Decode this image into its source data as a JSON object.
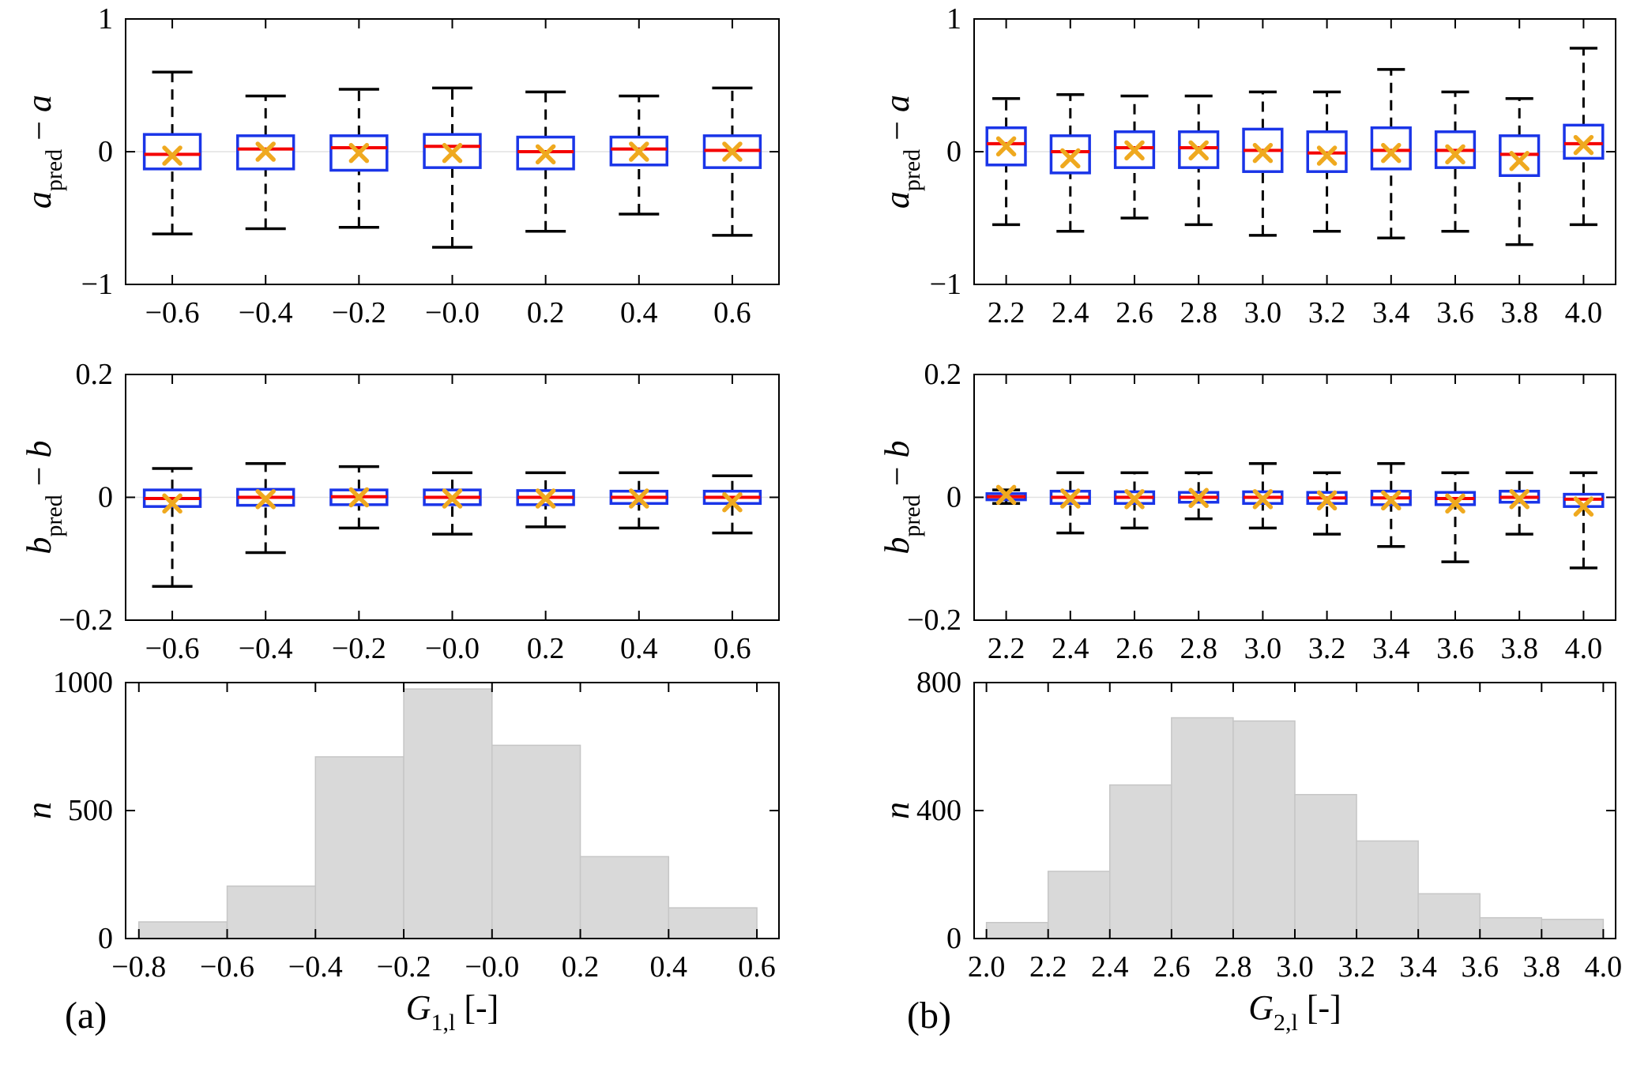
{
  "figure": {
    "panel_a_label": "(a)",
    "panel_b_label": "(b)",
    "colors": {
      "box": "#1a35e8",
      "median": "#f40000",
      "mean": "#efa91f",
      "whisker": "#000000",
      "cap": "#000000",
      "hist_fill": "#d9d9d9",
      "hist_edge": "#c6c6c6",
      "zero_grid": "#e2e2e2",
      "axis": "#000000",
      "text": "#000000"
    }
  },
  "chart_data": [
    {
      "id": "a_top",
      "type": "boxplot",
      "panel": {
        "col": 0,
        "row": 0
      },
      "ylabel": [
        {
          "t": "a",
          "i": 1
        },
        {
          "t": "pred",
          "s": 1
        },
        {
          "t": " − ",
          "i": 0
        },
        {
          "t": "a",
          "i": 1
        }
      ],
      "ylim": [
        -1,
        1
      ],
      "yticks": [
        {
          "v": -1,
          "label": "−1"
        },
        {
          "v": 0,
          "label": "0"
        },
        {
          "v": 1,
          "label": "1"
        }
      ],
      "zero_line": true,
      "categories": [
        "−0.6",
        "−0.4",
        "−0.2",
        "−0.0",
        "0.2",
        "0.4",
        "0.6"
      ],
      "boxes": [
        {
          "whislo": -0.62,
          "q1": -0.13,
          "med": -0.02,
          "q3": 0.13,
          "whishi": 0.6,
          "mean": -0.03
        },
        {
          "whislo": -0.58,
          "q1": -0.13,
          "med": 0.02,
          "q3": 0.12,
          "whishi": 0.42,
          "mean": 0.0
        },
        {
          "whislo": -0.57,
          "q1": -0.14,
          "med": 0.03,
          "q3": 0.12,
          "whishi": 0.47,
          "mean": -0.01
        },
        {
          "whislo": -0.72,
          "q1": -0.12,
          "med": 0.04,
          "q3": 0.13,
          "whishi": 0.48,
          "mean": -0.01
        },
        {
          "whislo": -0.6,
          "q1": -0.13,
          "med": 0.0,
          "q3": 0.11,
          "whishi": 0.45,
          "mean": -0.02
        },
        {
          "whislo": -0.47,
          "q1": -0.1,
          "med": 0.02,
          "q3": 0.11,
          "whishi": 0.42,
          "mean": 0.0
        },
        {
          "whislo": -0.63,
          "q1": -0.12,
          "med": 0.01,
          "q3": 0.12,
          "whishi": 0.48,
          "mean": 0.0
        }
      ]
    },
    {
      "id": "b_top",
      "type": "boxplot",
      "panel": {
        "col": 1,
        "row": 0
      },
      "ylabel": [
        {
          "t": "a",
          "i": 1
        },
        {
          "t": "pred",
          "s": 1
        },
        {
          "t": " − ",
          "i": 0
        },
        {
          "t": "a",
          "i": 1
        }
      ],
      "ylim": [
        -1,
        1
      ],
      "yticks": [
        {
          "v": -1,
          "label": "−1"
        },
        {
          "v": 0,
          "label": "0"
        },
        {
          "v": 1,
          "label": "1"
        }
      ],
      "zero_line": true,
      "categories": [
        "2.2",
        "2.4",
        "2.6",
        "2.8",
        "3.0",
        "3.2",
        "3.4",
        "3.6",
        "3.8",
        "4.0"
      ],
      "boxes": [
        {
          "whislo": -0.55,
          "q1": -0.1,
          "med": 0.06,
          "q3": 0.18,
          "whishi": 0.4,
          "mean": 0.04
        },
        {
          "whislo": -0.6,
          "q1": -0.16,
          "med": 0.0,
          "q3": 0.12,
          "whishi": 0.43,
          "mean": -0.05
        },
        {
          "whislo": -0.5,
          "q1": -0.12,
          "med": 0.03,
          "q3": 0.15,
          "whishi": 0.42,
          "mean": 0.01
        },
        {
          "whislo": -0.55,
          "q1": -0.12,
          "med": 0.03,
          "q3": 0.15,
          "whishi": 0.42,
          "mean": 0.01
        },
        {
          "whislo": -0.63,
          "q1": -0.15,
          "med": 0.01,
          "q3": 0.17,
          "whishi": 0.45,
          "mean": -0.01
        },
        {
          "whislo": -0.6,
          "q1": -0.15,
          "med": -0.01,
          "q3": 0.15,
          "whishi": 0.45,
          "mean": -0.03
        },
        {
          "whislo": -0.65,
          "q1": -0.13,
          "med": 0.01,
          "q3": 0.18,
          "whishi": 0.62,
          "mean": -0.01
        },
        {
          "whislo": -0.6,
          "q1": -0.12,
          "med": 0.01,
          "q3": 0.15,
          "whishi": 0.45,
          "mean": -0.02
        },
        {
          "whislo": -0.7,
          "q1": -0.18,
          "med": -0.02,
          "q3": 0.12,
          "whishi": 0.4,
          "mean": -0.07
        },
        {
          "whislo": -0.55,
          "q1": -0.05,
          "med": 0.06,
          "q3": 0.2,
          "whishi": 0.78,
          "mean": 0.05
        }
      ]
    },
    {
      "id": "a_mid",
      "type": "boxplot",
      "panel": {
        "col": 0,
        "row": 1
      },
      "ylabel": [
        {
          "t": "b",
          "i": 1
        },
        {
          "t": "pred",
          "s": 1
        },
        {
          "t": " − ",
          "i": 0
        },
        {
          "t": "b",
          "i": 1
        }
      ],
      "ylim": [
        -0.2,
        0.2
      ],
      "yticks": [
        {
          "v": -0.2,
          "label": "−0.2"
        },
        {
          "v": 0,
          "label": "0"
        },
        {
          "v": 0.2,
          "label": "0.2"
        }
      ],
      "zero_line": true,
      "categories": [
        "−0.6",
        "−0.4",
        "−0.2",
        "−0.0",
        "0.2",
        "0.4",
        "0.6"
      ],
      "boxes": [
        {
          "whislo": -0.145,
          "q1": -0.015,
          "med": -0.002,
          "q3": 0.012,
          "whishi": 0.047,
          "mean": -0.01
        },
        {
          "whislo": -0.09,
          "q1": -0.013,
          "med": 0.0,
          "q3": 0.013,
          "whishi": 0.055,
          "mean": -0.003
        },
        {
          "whislo": -0.05,
          "q1": -0.012,
          "med": 0.001,
          "q3": 0.012,
          "whishi": 0.05,
          "mean": 0.0
        },
        {
          "whislo": -0.06,
          "q1": -0.012,
          "med": 0.0,
          "q3": 0.012,
          "whishi": 0.04,
          "mean": -0.002
        },
        {
          "whislo": -0.048,
          "q1": -0.012,
          "med": 0.0,
          "q3": 0.011,
          "whishi": 0.04,
          "mean": -0.002
        },
        {
          "whislo": -0.05,
          "q1": -0.01,
          "med": 0.0,
          "q3": 0.01,
          "whishi": 0.04,
          "mean": -0.002
        },
        {
          "whislo": -0.058,
          "q1": -0.01,
          "med": 0.0,
          "q3": 0.01,
          "whishi": 0.035,
          "mean": -0.008
        }
      ]
    },
    {
      "id": "b_mid",
      "type": "boxplot",
      "panel": {
        "col": 1,
        "row": 1
      },
      "ylabel": [
        {
          "t": "b",
          "i": 1
        },
        {
          "t": "pred",
          "s": 1
        },
        {
          "t": " − ",
          "i": 0
        },
        {
          "t": "b",
          "i": 1
        }
      ],
      "ylim": [
        -0.2,
        0.2
      ],
      "yticks": [
        {
          "v": -0.2,
          "label": "−0.2"
        },
        {
          "v": 0,
          "label": "0"
        },
        {
          "v": 0.2,
          "label": "0.2"
        }
      ],
      "zero_line": true,
      "categories": [
        "2.2",
        "2.4",
        "2.6",
        "2.8",
        "3.0",
        "3.2",
        "3.4",
        "3.6",
        "3.8",
        "4.0"
      ],
      "boxes": [
        {
          "whislo": -0.01,
          "q1": -0.004,
          "med": 0.001,
          "q3": 0.006,
          "whishi": 0.012,
          "mean": 0.004
        },
        {
          "whislo": -0.058,
          "q1": -0.01,
          "med": 0.0,
          "q3": 0.01,
          "whishi": 0.04,
          "mean": -0.002
        },
        {
          "whislo": -0.05,
          "q1": -0.01,
          "med": 0.0,
          "q3": 0.009,
          "whishi": 0.04,
          "mean": -0.003
        },
        {
          "whislo": -0.035,
          "q1": -0.008,
          "med": 0.0,
          "q3": 0.008,
          "whishi": 0.04,
          "mean": -0.001
        },
        {
          "whislo": -0.05,
          "q1": -0.01,
          "med": 0.0,
          "q3": 0.009,
          "whishi": 0.055,
          "mean": -0.003
        },
        {
          "whislo": -0.06,
          "q1": -0.01,
          "med": -0.001,
          "q3": 0.008,
          "whishi": 0.04,
          "mean": -0.005
        },
        {
          "whislo": -0.08,
          "q1": -0.012,
          "med": -0.001,
          "q3": 0.01,
          "whishi": 0.055,
          "mean": -0.005
        },
        {
          "whislo": -0.105,
          "q1": -0.012,
          "med": -0.002,
          "q3": 0.008,
          "whishi": 0.04,
          "mean": -0.01
        },
        {
          "whislo": -0.06,
          "q1": -0.008,
          "med": 0.0,
          "q3": 0.01,
          "whishi": 0.04,
          "mean": -0.003
        },
        {
          "whislo": -0.115,
          "q1": -0.015,
          "med": -0.003,
          "q3": 0.005,
          "whishi": 0.04,
          "mean": -0.015
        }
      ]
    },
    {
      "id": "a_hist",
      "type": "hist",
      "panel": {
        "col": 0,
        "row": 2
      },
      "ylabel": [
        {
          "t": "n",
          "i": 1
        }
      ],
      "xlabel": [
        {
          "t": "G",
          "i": 1
        },
        {
          "t": "1,l",
          "s": 1
        },
        {
          "t": " [-]",
          "i": 0
        }
      ],
      "ylim": [
        0,
        1000
      ],
      "yticks": [
        {
          "v": 0,
          "label": "0"
        },
        {
          "v": 500,
          "label": "500"
        },
        {
          "v": 1000,
          "label": "1000"
        }
      ],
      "xlim": [
        -0.83,
        0.65
      ],
      "bin_edges": [
        -0.8,
        -0.6,
        -0.4,
        -0.2,
        0.0,
        0.2,
        0.4,
        0.6
      ],
      "counts": [
        65,
        205,
        710,
        975,
        755,
        320,
        120
      ],
      "xticks": [
        {
          "v": -0.8,
          "label": "−0.8"
        },
        {
          "v": -0.6,
          "label": "−0.6"
        },
        {
          "v": -0.4,
          "label": "−0.4"
        },
        {
          "v": -0.2,
          "label": "−0.2"
        },
        {
          "v": 0.0,
          "label": "−0.0"
        },
        {
          "v": 0.2,
          "label": "0.2"
        },
        {
          "v": 0.4,
          "label": "0.4"
        },
        {
          "v": 0.6,
          "label": "0.6"
        }
      ]
    },
    {
      "id": "b_hist",
      "type": "hist",
      "panel": {
        "col": 1,
        "row": 2
      },
      "ylabel": [
        {
          "t": "n",
          "i": 1
        }
      ],
      "xlabel": [
        {
          "t": "G",
          "i": 1
        },
        {
          "t": "2,l",
          "s": 1
        },
        {
          "t": " [-]",
          "i": 0
        }
      ],
      "ylim": [
        0,
        800
      ],
      "yticks": [
        {
          "v": 0,
          "label": "0"
        },
        {
          "v": 400,
          "label": "400"
        },
        {
          "v": 800,
          "label": "800"
        }
      ],
      "xlim": [
        1.96,
        4.04
      ],
      "bin_edges": [
        2.0,
        2.2,
        2.4,
        2.6,
        2.8,
        3.0,
        3.2,
        3.4,
        3.6,
        3.8,
        4.0
      ],
      "counts": [
        50,
        210,
        480,
        690,
        680,
        450,
        305,
        140,
        65,
        60
      ],
      "xticks": [
        {
          "v": 2.0,
          "label": "2.0"
        },
        {
          "v": 2.2,
          "label": "2.2"
        },
        {
          "v": 2.4,
          "label": "2.4"
        },
        {
          "v": 2.6,
          "label": "2.6"
        },
        {
          "v": 2.8,
          "label": "2.8"
        },
        {
          "v": 3.0,
          "label": "3.0"
        },
        {
          "v": 3.2,
          "label": "3.2"
        },
        {
          "v": 3.4,
          "label": "3.4"
        },
        {
          "v": 3.6,
          "label": "3.6"
        },
        {
          "v": 3.8,
          "label": "3.8"
        },
        {
          "v": 4.0,
          "label": "4.0"
        }
      ]
    }
  ]
}
